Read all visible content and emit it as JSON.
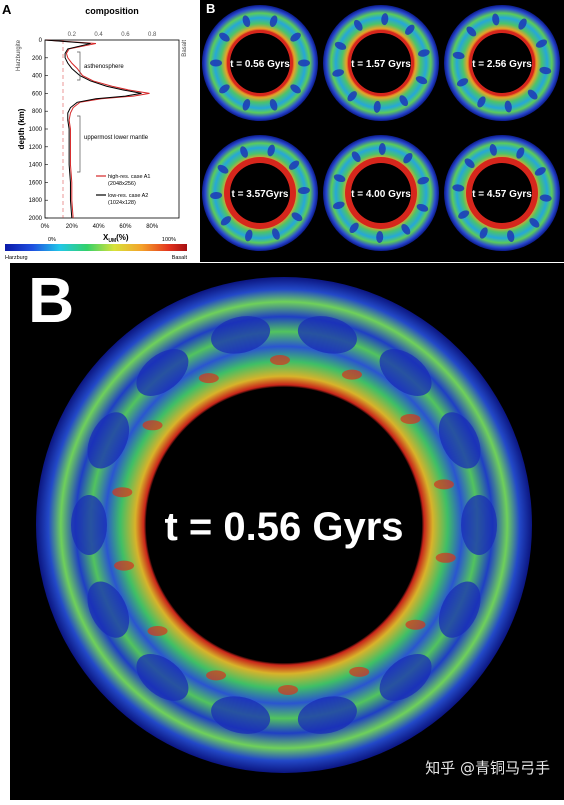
{
  "panel_a": {
    "label": "A",
    "title": "composition",
    "left_end": "Harzburgite",
    "right_end": "Basalt",
    "top_ticks": [
      "0.2",
      "0.4",
      "0.6",
      "0.8"
    ],
    "y_label": "depth (km)",
    "y_ticks": [
      "0",
      "200",
      "400",
      "600",
      "800",
      "1000",
      "1200",
      "1400",
      "1600",
      "1800",
      "2000"
    ],
    "x_ticks": [
      "0%",
      "20%",
      "40%",
      "60%",
      "80%"
    ],
    "x_label": "X",
    "x_label_sub": "UM",
    "x_label_unit": "(%)",
    "annotations": {
      "asthenosphere": "asthenosphere",
      "lower": "uppermost lower mantle"
    },
    "legend": [
      {
        "name": "high-res. case A1",
        "detail": "(2048x256)",
        "color": "#d62728"
      },
      {
        "name": "low-res. case A2",
        "detail": "(1024x128)",
        "color": "#000000"
      }
    ],
    "colorbar": {
      "left": "Harzburg",
      "right": "Basalt",
      "min": "0%",
      "max": "100%"
    }
  },
  "panel_b": {
    "label": "B",
    "times": [
      "t = 0.56 Gyrs",
      "t = 1.57 Gyrs",
      "t = 2.56 Gyrs",
      "t = 3.57Gyrs",
      "t = 4.00 Gyrs",
      "t = 4.57 Gyrs"
    ]
  },
  "panel_big": {
    "label": "B",
    "time": "t = 0.56 Gyrs"
  },
  "watermark": "知乎 @青铜马弓手",
  "chart_data": {
    "type": "line",
    "title": "composition",
    "xlabel": "X_UM (%)",
    "ylabel": "depth (km)",
    "xlim": [
      0,
      100
    ],
    "ylim": [
      2000,
      0
    ],
    "series": [
      {
        "name": "high-res. case A1 (2048x256)",
        "color": "#d62728",
        "depth": [
          0,
          40,
          100,
          150,
          200,
          260,
          320,
          400,
          460,
          520,
          560,
          600,
          630,
          660,
          700,
          760,
          820,
          900,
          1000,
          1200,
          1400,
          1600,
          1800,
          2000
        ],
        "x": [
          0,
          38,
          18,
          16,
          17,
          20,
          24,
          28,
          36,
          50,
          62,
          78,
          66,
          42,
          26,
          21,
          19,
          18,
          19,
          19,
          19,
          20,
          20,
          21
        ]
      },
      {
        "name": "low-res. case A2 (1024x128)",
        "color": "#000000",
        "depth": [
          0,
          40,
          100,
          150,
          200,
          260,
          320,
          400,
          460,
          520,
          560,
          600,
          630,
          660,
          700,
          760,
          820,
          900,
          1000,
          1200,
          1400,
          1600,
          1800,
          2000
        ],
        "x": [
          0,
          34,
          17,
          15,
          15,
          17,
          20,
          26,
          34,
          46,
          58,
          72,
          60,
          38,
          24,
          19,
          17,
          17,
          18,
          18,
          18,
          19,
          19,
          20
        ]
      }
    ]
  }
}
